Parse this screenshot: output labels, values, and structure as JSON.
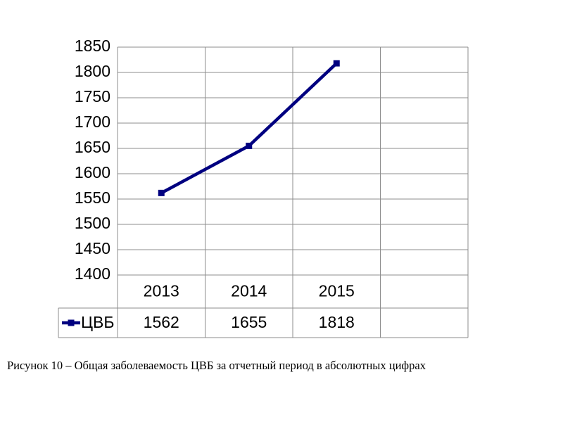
{
  "chart_data": {
    "type": "line",
    "categories": [
      "2013",
      "2014",
      "2015",
      null
    ],
    "series": [
      {
        "name": "ЦВБ",
        "color": "#000080",
        "values": [
          1562,
          1655,
          1818,
          null
        ]
      }
    ],
    "ylim": [
      1400,
      1850
    ],
    "yticks": [
      1400,
      1450,
      1500,
      1550,
      1600,
      1650,
      1700,
      1750,
      1800,
      1850
    ],
    "grid": true
  },
  "caption": "Рисунок 10 – Общая заболеваемость ЦВБ за отчетный период в абсолютных цифрах"
}
